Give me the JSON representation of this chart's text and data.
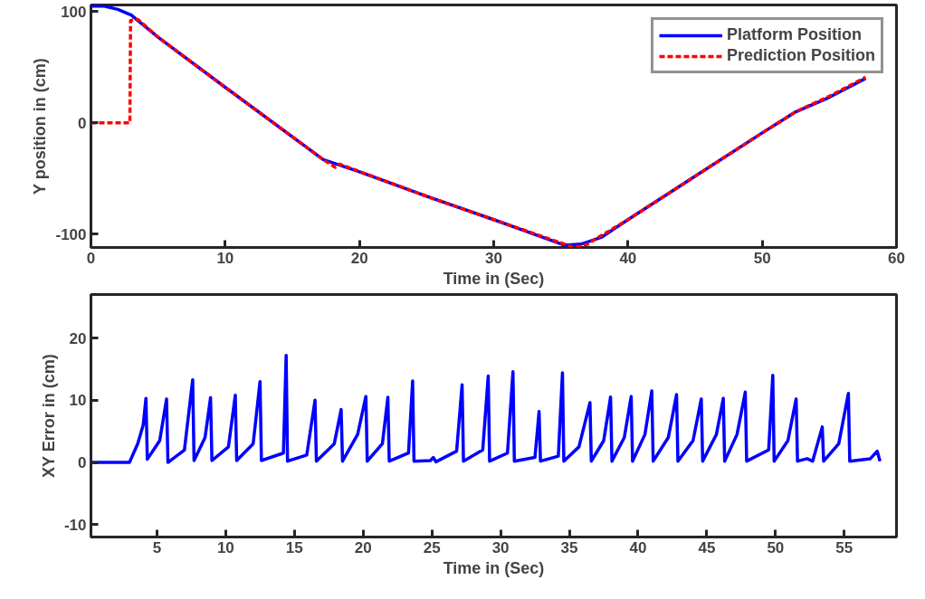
{
  "chart_data": [
    {
      "type": "line",
      "xlabel": "Time in (Sec)",
      "ylabel": "Y position in (cm)",
      "xlim": [
        0,
        60
      ],
      "ylim": [
        -112,
        106
      ],
      "xticks": [
        0,
        10,
        20,
        30,
        40,
        50,
        60
      ],
      "yticks": [
        -100,
        0,
        100
      ],
      "grid": false,
      "legend": "top right",
      "series": [
        {
          "name": "Platform Position",
          "color": "#0000ff",
          "line_style": "solid",
          "x": [
            0,
            1,
            2,
            3,
            5,
            10,
            17.3,
            20,
            25,
            30,
            35.3,
            36.5,
            38,
            40,
            45,
            50,
            52.5,
            55,
            57.7
          ],
          "values": [
            105,
            105,
            102,
            97,
            77,
            32,
            -33,
            -44,
            -66,
            -87,
            -110,
            -109,
            -103,
            -87,
            -48,
            -9,
            10,
            23,
            40
          ]
        },
        {
          "name": "Prediction Position",
          "color": "#ff0000",
          "line_style": "dashed",
          "x": [
            0,
            2.9,
            2.95,
            3.5,
            5,
            10,
            17.3,
            18.2,
            18.5,
            25,
            30,
            35.5,
            36,
            37,
            37.5,
            40,
            45,
            50,
            52.5,
            55,
            57.7
          ],
          "values": [
            0,
            0,
            92,
            93,
            77,
            32,
            -33,
            -40,
            -37,
            -66,
            -87,
            -110,
            -112,
            -109,
            -105,
            -87,
            -48,
            -9,
            10,
            24,
            41
          ]
        }
      ]
    },
    {
      "type": "line",
      "xlabel": "Time in (Sec)",
      "ylabel": "XY Error in (cm)",
      "xlim": [
        0.2,
        58.8
      ],
      "ylim": [
        -12,
        27
      ],
      "xticks": [
        5,
        10,
        15,
        20,
        25,
        30,
        35,
        40,
        45,
        50,
        55
      ],
      "yticks": [
        -10,
        0,
        10,
        20
      ],
      "grid": false,
      "series": [
        {
          "color": "#0000ff",
          "line_style": "solid",
          "x": [
            0.2,
            3,
            3.6,
            4.0,
            4.2,
            4.3,
            5.2,
            5.7,
            5.8,
            7.0,
            7.6,
            7.7,
            8.5,
            8.9,
            9.0,
            10.2,
            10.7,
            10.8,
            12.0,
            12.5,
            12.6,
            14.2,
            14.4,
            14.5,
            15.9,
            16.5,
            16.6,
            17.9,
            18.4,
            18.5,
            19.6,
            20.2,
            20.3,
            21.4,
            21.8,
            21.9,
            23.3,
            23.6,
            23.7,
            24.9,
            25.1,
            25.3,
            26.8,
            27.2,
            27.3,
            28.7,
            29.1,
            29.2,
            30.5,
            30.9,
            31.0,
            32.5,
            32.8,
            32.9,
            34.2,
            34.5,
            34.6,
            35.7,
            36.5,
            36.6,
            37.5,
            38,
            38.1,
            39.0,
            39.5,
            39.6,
            40.5,
            41,
            41.1,
            42.2,
            42.8,
            42.9,
            44.0,
            44.6,
            44.7,
            45.7,
            46.2,
            46.3,
            47.2,
            47.8,
            47.9,
            49.5,
            49.8,
            49.9,
            50.9,
            51.5,
            51.6,
            52.3,
            52.7,
            53.4,
            53.5,
            54.6,
            55.3,
            55.4,
            56.9,
            57.4,
            57.6
          ],
          "values": [
            0,
            0,
            3,
            6,
            10.3,
            0.5,
            3.5,
            10.2,
            0,
            2,
            13.3,
            0.3,
            4,
            10.4,
            0.3,
            2.5,
            10.8,
            0.3,
            3,
            13,
            0.3,
            1.5,
            17.2,
            0.2,
            1.2,
            10,
            0.2,
            3,
            8.5,
            0.2,
            4.5,
            10.6,
            0.2,
            3,
            10.5,
            0.2,
            1.5,
            13.1,
            0.2,
            0.3,
            0.8,
            0.1,
            1.8,
            12.5,
            0.2,
            2,
            13.9,
            0.2,
            1.5,
            14.6,
            0.2,
            0.8,
            8.2,
            0.2,
            1,
            14.4,
            0.2,
            2.5,
            9.6,
            0.2,
            3.5,
            10.5,
            0.2,
            4,
            10.6,
            0.2,
            4.5,
            11.5,
            0.2,
            4,
            10.9,
            0.2,
            3.5,
            10.2,
            0.2,
            4.5,
            10.3,
            0.2,
            4.5,
            11.3,
            0.2,
            2,
            14,
            0.2,
            3.5,
            10.2,
            0.2,
            0.6,
            0.2,
            5.7,
            0.2,
            3,
            11.1,
            0.2,
            0.6,
            1.8,
            0.2
          ]
        }
      ]
    }
  ]
}
